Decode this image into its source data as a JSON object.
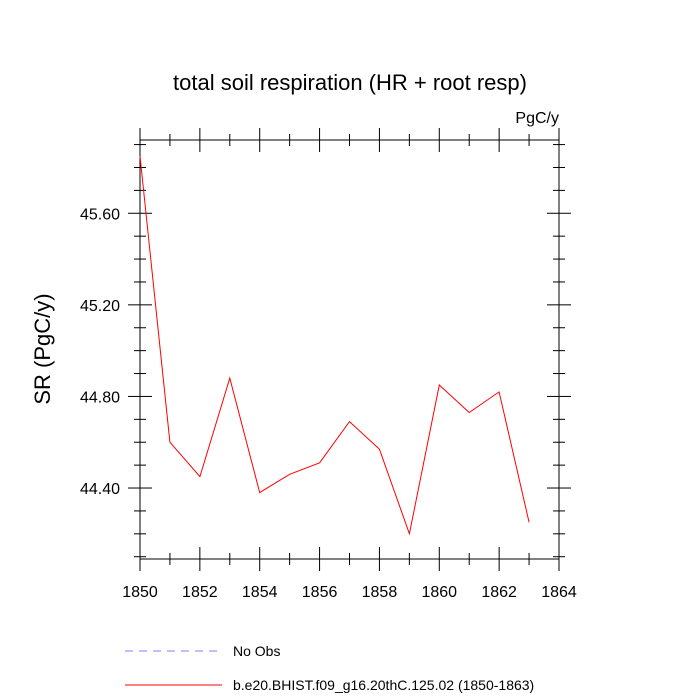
{
  "chart_data": {
    "type": "line",
    "title": "total soil respiration (HR + root resp)",
    "units": "PgC/y",
    "xlabel": "",
    "ylabel": "SR  (PgC/y)",
    "xlim": [
      1850,
      1864
    ],
    "ylim": [
      44.09,
      45.92
    ],
    "x_ticks": [
      1850,
      1852,
      1854,
      1856,
      1858,
      1860,
      1862,
      1864
    ],
    "y_ticks": [
      44.4,
      44.8,
      45.2,
      45.6
    ],
    "x_tick_labels": [
      "1850",
      "1852",
      "1854",
      "1856",
      "1858",
      "1860",
      "1862",
      "1864"
    ],
    "y_tick_labels": [
      "44.40",
      "44.80",
      "45.20",
      "45.60"
    ],
    "grid": false,
    "legend_position": "bottom",
    "series": [
      {
        "name": "b.e20.BHIST.f09_g16.20thC.125.02 (1850-1863)",
        "color": "#ff0000",
        "style": "solid",
        "x": [
          1850,
          1851,
          1852,
          1853,
          1854,
          1855,
          1856,
          1857,
          1858,
          1859,
          1860,
          1861,
          1862,
          1863
        ],
        "y": [
          45.85,
          44.6,
          44.45,
          44.88,
          44.38,
          44.46,
          44.51,
          44.69,
          44.57,
          44.2,
          44.85,
          44.73,
          44.82,
          44.25
        ]
      }
    ],
    "legend": [
      {
        "label": "No Obs",
        "color": "#8080ff",
        "style": "dashed"
      },
      {
        "label": "b.e20.BHIST.f09_g16.20thC.125.02 (1850-1863)",
        "color": "#ff0000",
        "style": "solid"
      }
    ]
  }
}
